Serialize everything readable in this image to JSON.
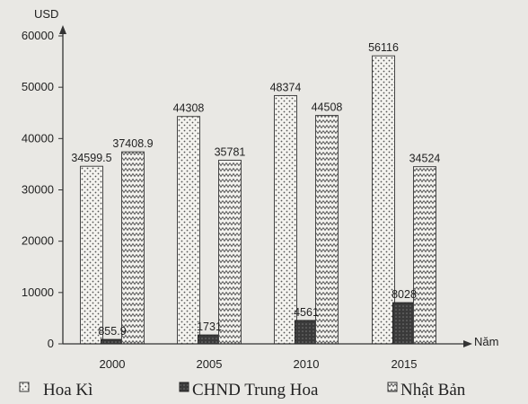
{
  "chart_data": {
    "type": "bar",
    "ylabel": "USD",
    "xlabel": "Năm",
    "categories": [
      "2000",
      "2005",
      "2010",
      "2015"
    ],
    "ylim": [
      0,
      60000
    ],
    "yticks": [
      0,
      10000,
      20000,
      30000,
      40000,
      50000,
      60000
    ],
    "legend_position": "bottom",
    "series": [
      {
        "name": "Hoa Kì",
        "values": [
          34599.5,
          44308,
          48374,
          56116
        ],
        "labels": [
          "34599.5",
          "44308",
          "48374",
          "56116"
        ]
      },
      {
        "name": "CHND Trung Hoa",
        "values": [
          855.9,
          1731,
          4561,
          8028
        ],
        "labels": [
          "855.9",
          "1731",
          "4561",
          "8028"
        ]
      },
      {
        "name": "Nhật Bản",
        "values": [
          37408.9,
          35781,
          44508,
          34524
        ],
        "labels": [
          "37408.9",
          "35781",
          "44508",
          "34524"
        ]
      }
    ]
  }
}
